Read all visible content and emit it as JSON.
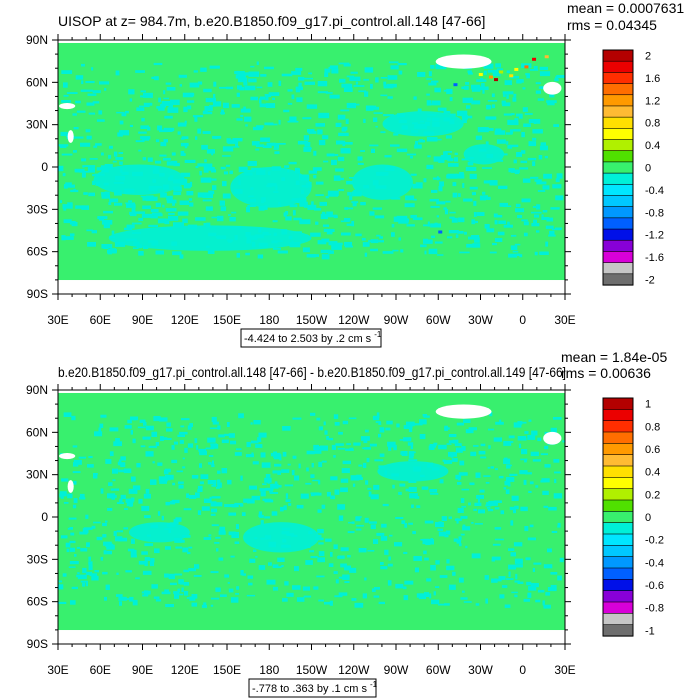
{
  "chart_data": [
    {
      "type": "heatmap",
      "title": "UISOP at z= 984.7m, b.e20.B1850.f09_g17.pi_control.all.148 [47-66]",
      "stats": {
        "mean": "mean = 0.0007631",
        "rms": "rms = 0.04345"
      },
      "xticks": [
        "30E",
        "60E",
        "90E",
        "120E",
        "150E",
        "180",
        "150W",
        "120W",
        "90W",
        "60W",
        "30W",
        "0",
        "30E"
      ],
      "yticks": [
        "90N",
        "60N",
        "30N",
        "0",
        "30S",
        "60S",
        "90S"
      ],
      "range_label": "-4.424 to 2.503 by .2 cm s",
      "range_unit_exp": "-1",
      "colorbar": {
        "labels": [
          "2",
          "1.6",
          "1.2",
          "0.8",
          "0.4",
          "0",
          "-0.4",
          "-0.8",
          "-1.2",
          "-1.6",
          "-2"
        ],
        "colors": [
          "#b40000",
          "#eb0000",
          "#ff2e00",
          "#ff6e00",
          "#ff9a00",
          "#ffbb33",
          "#ffe000",
          "#ffff00",
          "#b0f000",
          "#50e000",
          "#38f06e",
          "#00f0d8",
          "#00e6ff",
          "#00c8ff",
          "#0098ff",
          "#0060ff",
          "#0010e8",
          "#8800d8",
          "#d800d8",
          "#c6c6c6",
          "#6e6e6e"
        ]
      },
      "field": {
        "background": "#38f06e",
        "secondary": "#00f0d8",
        "missing": "#ffffff"
      }
    },
    {
      "type": "heatmap",
      "title": "b.e20.B1850.f09_g17.pi_control.all.148 [47-66] - b.e20.B1850.f09_g17.pi_control.all.149 [47-66]",
      "stats": {
        "mean": "mean = 1.84e-05",
        "rms": "rms = 0.00636"
      },
      "xticks": [
        "30E",
        "60E",
        "90E",
        "120E",
        "150E",
        "180",
        "150W",
        "120W",
        "90W",
        "60W",
        "30W",
        "0",
        "30E"
      ],
      "yticks": [
        "90N",
        "60N",
        "30N",
        "0",
        "30S",
        "60S",
        "90S"
      ],
      "range_label": "-.778 to .363 by .1 cm s",
      "range_unit_exp": "-1",
      "colorbar": {
        "labels": [
          "1",
          "0.8",
          "0.6",
          "0.4",
          "0.2",
          "0",
          "-0.2",
          "-0.4",
          "-0.6",
          "-0.8",
          "-1"
        ],
        "colors": [
          "#b40000",
          "#eb0000",
          "#ff2e00",
          "#ff6e00",
          "#ff9a00",
          "#ffbb33",
          "#ffe000",
          "#ffff00",
          "#b0f000",
          "#50e000",
          "#38f06e",
          "#00f0d8",
          "#00e6ff",
          "#00c8ff",
          "#0098ff",
          "#0060ff",
          "#0010e8",
          "#8800d8",
          "#d800d8",
          "#c6c6c6",
          "#6e6e6e"
        ]
      },
      "field": {
        "background": "#38f06e",
        "secondary": "#00f0d8",
        "missing": "#ffffff"
      }
    }
  ]
}
